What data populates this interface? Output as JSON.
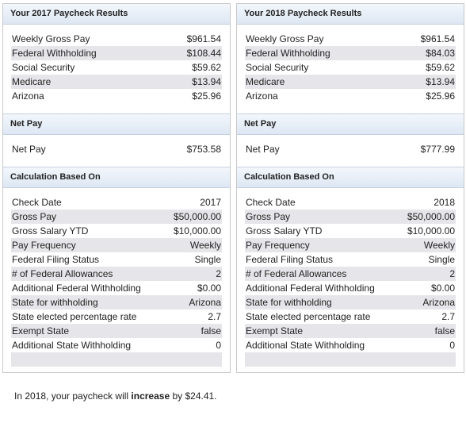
{
  "panels": [
    {
      "sections": [
        {
          "title": "Your 2017 Paycheck Results",
          "rows": [
            [
              "Weekly Gross Pay",
              "$961.54"
            ],
            [
              "Federal Withholding",
              "$108.44"
            ],
            [
              "Social Security",
              "$59.62"
            ],
            [
              "Medicare",
              "$13.94"
            ],
            [
              "Arizona",
              "$25.96"
            ]
          ]
        },
        {
          "title": "Net Pay",
          "rows": [
            [
              "Net Pay",
              "$753.58"
            ]
          ]
        },
        {
          "title": "Calculation Based On",
          "rows": [
            [
              "Check Date",
              "2017"
            ],
            [
              "Gross Pay",
              "$50,000.00"
            ],
            [
              "Gross Salary YTD",
              "$10,000.00"
            ],
            [
              "Pay Frequency",
              "Weekly"
            ],
            [
              "Federal Filing Status",
              "Single"
            ],
            [
              "# of Federal Allowances",
              "2"
            ],
            [
              "Additional Federal Withholding",
              "$0.00"
            ],
            [
              "State for withholding",
              "Arizona"
            ],
            [
              "State elected percentage rate",
              "2.7"
            ],
            [
              "Exempt State",
              "false"
            ],
            [
              "Additional State Withholding",
              "0"
            ]
          ]
        }
      ]
    },
    {
      "sections": [
        {
          "title": "Your 2018 Paycheck Results",
          "rows": [
            [
              "Weekly Gross Pay",
              "$961.54"
            ],
            [
              "Federal Withholding",
              "$84.03"
            ],
            [
              "Social Security",
              "$59.62"
            ],
            [
              "Medicare",
              "$13.94"
            ],
            [
              "Arizona",
              "$25.96"
            ]
          ]
        },
        {
          "title": "Net Pay",
          "rows": [
            [
              "Net Pay",
              "$777.99"
            ]
          ]
        },
        {
          "title": "Calculation Based On",
          "rows": [
            [
              "Check Date",
              "2018"
            ],
            [
              "Gross Pay",
              "$50,000.00"
            ],
            [
              "Gross Salary YTD",
              "$10,000.00"
            ],
            [
              "Pay Frequency",
              "Weekly"
            ],
            [
              "Federal Filing Status",
              "Single"
            ],
            [
              "# of Federal Allowances",
              "2"
            ],
            [
              "Additional Federal Withholding",
              "$0.00"
            ],
            [
              "State for withholding",
              "Arizona"
            ],
            [
              "State elected percentage rate",
              "2.7"
            ],
            [
              "Exempt State",
              "false"
            ],
            [
              "Additional State Withholding",
              "0"
            ]
          ]
        }
      ]
    }
  ],
  "footer": {
    "before": "In 2018, your paycheck will ",
    "bold": "increase",
    "after": " by $24.41."
  }
}
